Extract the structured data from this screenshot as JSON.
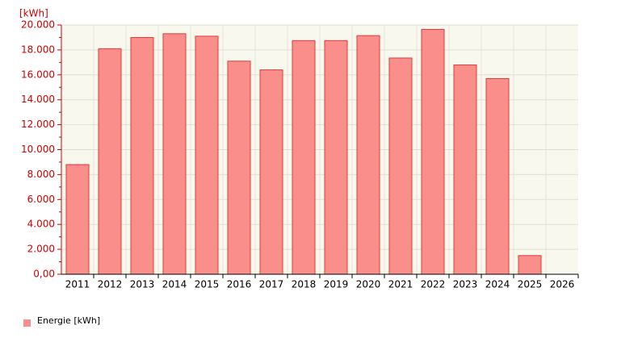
{
  "chart_data": {
    "type": "bar",
    "ylabel": "[kWh]",
    "categories": [
      "2011",
      "2012",
      "2013",
      "2014",
      "2015",
      "2016",
      "2017",
      "2018",
      "2019",
      "2020",
      "2021",
      "2022",
      "2023",
      "2024",
      "2025",
      "2026"
    ],
    "series": [
      {
        "name": "Energie [kWh]",
        "color": "#fa8e8a",
        "values": [
          8800,
          18100,
          19000,
          19300,
          19100,
          17100,
          16400,
          18750,
          18750,
          19150,
          17350,
          19650,
          16800,
          15700,
          1500,
          null
        ]
      }
    ],
    "ylim": [
      0,
      20000
    ],
    "yticks": [
      {
        "value": 0,
        "label": "0,00"
      },
      {
        "value": 2000,
        "label": "2.000"
      },
      {
        "value": 4000,
        "label": "4.000"
      },
      {
        "value": 6000,
        "label": "6.000"
      },
      {
        "value": 8000,
        "label": "8.000"
      },
      {
        "value": 10000,
        "label": "10.000"
      },
      {
        "value": 12000,
        "label": "12.000"
      },
      {
        "value": 14000,
        "label": "14.000"
      },
      {
        "value": 16000,
        "label": "16.000"
      },
      {
        "value": 18000,
        "label": "18.000"
      },
      {
        "value": 20000,
        "label": "20.000"
      }
    ],
    "grid": true
  }
}
